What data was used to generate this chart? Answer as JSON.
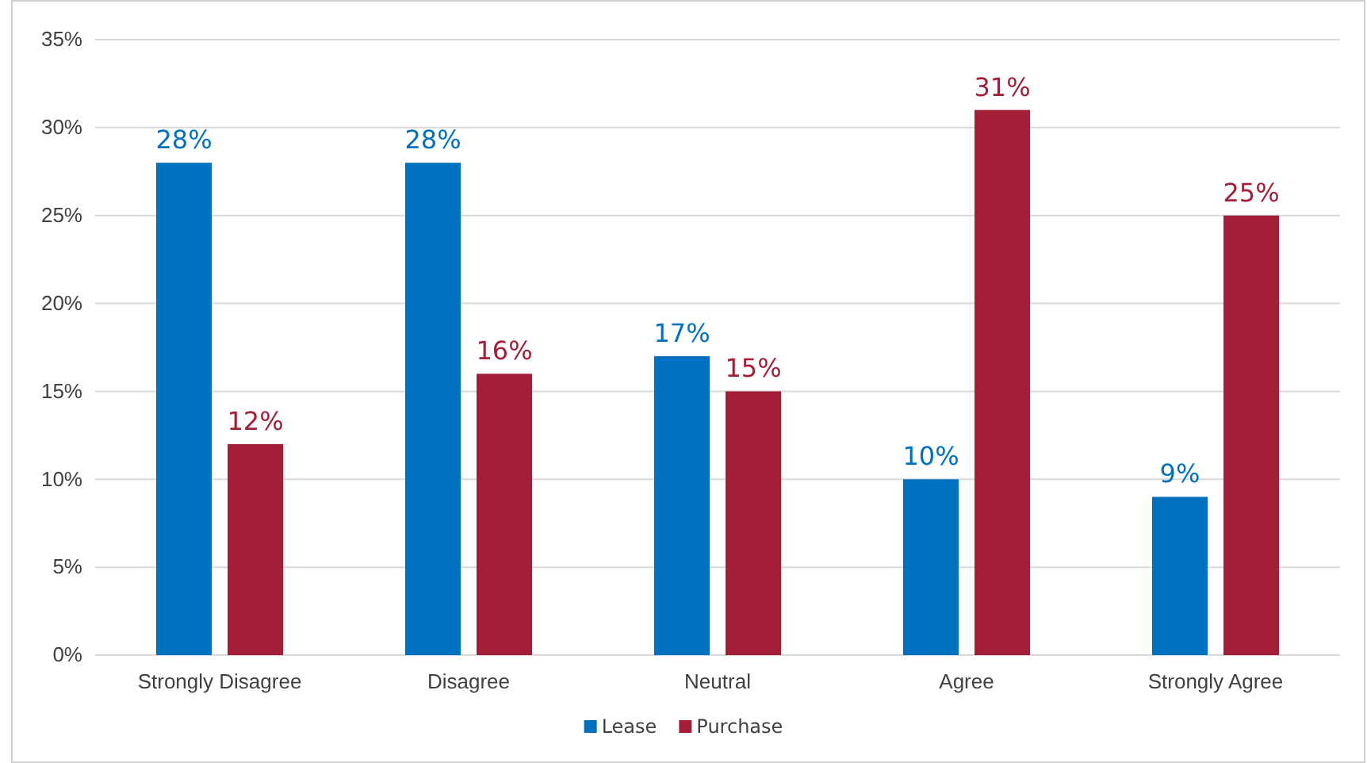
{
  "chart_data": {
    "type": "bar",
    "categories": [
      "Strongly Disagree",
      "Disagree",
      "Neutral",
      "Agree",
      "Strongly Agree"
    ],
    "series": [
      {
        "name": "Lease",
        "color": "#0070c0",
        "values": [
          28,
          28,
          17,
          10,
          9
        ],
        "value_labels": [
          "28%",
          "28%",
          "17%",
          "10%",
          "9%"
        ]
      },
      {
        "name": "Purchase",
        "color": "#a31f37",
        "values": [
          12,
          16,
          15,
          31,
          25
        ],
        "value_labels": [
          "12%",
          "16%",
          "15%",
          "31%",
          "25%"
        ]
      }
    ],
    "ylim": [
      0,
      35
    ],
    "yticks": [
      {
        "value": 0,
        "label": "0%"
      },
      {
        "value": 5,
        "label": "5%"
      },
      {
        "value": 10,
        "label": "10%"
      },
      {
        "value": 15,
        "label": "15%"
      },
      {
        "value": 20,
        "label": "20%"
      },
      {
        "value": 25,
        "label": "25%"
      },
      {
        "value": 30,
        "label": "30%"
      },
      {
        "value": 35,
        "label": "35%"
      }
    ],
    "grid": "y",
    "legend": "bottom"
  }
}
